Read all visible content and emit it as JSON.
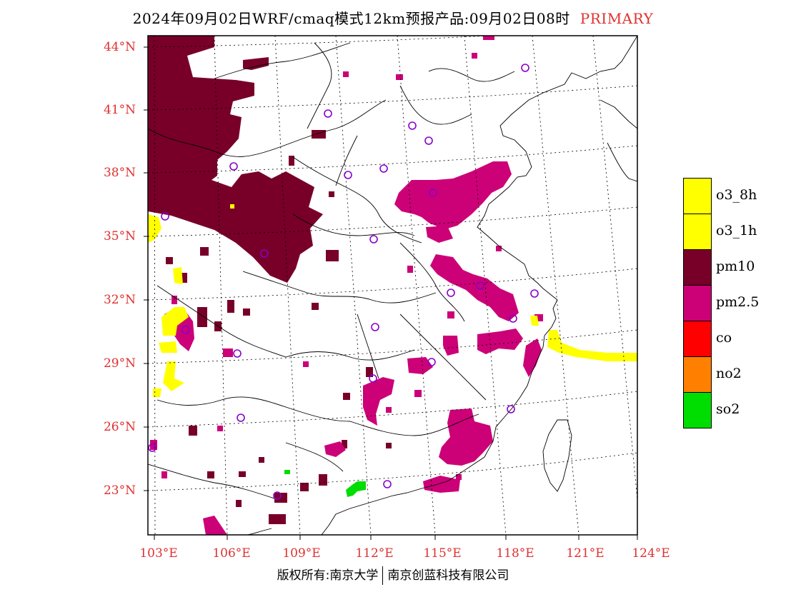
{
  "title": {
    "text": "2024年09月02日WRF/cmaq模式12km预报产品:09月02日08时",
    "tag": "PRIMARY"
  },
  "axes": {
    "lat_labels": [
      "44°N",
      "41°N",
      "38°N",
      "35°N",
      "32°N",
      "29°N",
      "26°N",
      "23°N"
    ],
    "lon_labels": [
      "103°E",
      "106°E",
      "109°E",
      "112°E",
      "115°E",
      "118°E",
      "121°E",
      "124°E"
    ],
    "label_color": "#e03030"
  },
  "legend": [
    {
      "label": "o3_8h",
      "color": "#ffff00"
    },
    {
      "label": "o3_1h",
      "color": "#ffff00"
    },
    {
      "label": "pm10",
      "color": "#780028"
    },
    {
      "label": "pm2.5",
      "color": "#cc0077"
    },
    {
      "label": "co",
      "color": "#ff0000"
    },
    {
      "label": "no2",
      "color": "#ff8000"
    },
    {
      "label": "so2",
      "color": "#00dd00"
    }
  ],
  "copyright": {
    "left": "版权所有:南京大学",
    "right": "南京创蓝科技有限公司"
  }
}
